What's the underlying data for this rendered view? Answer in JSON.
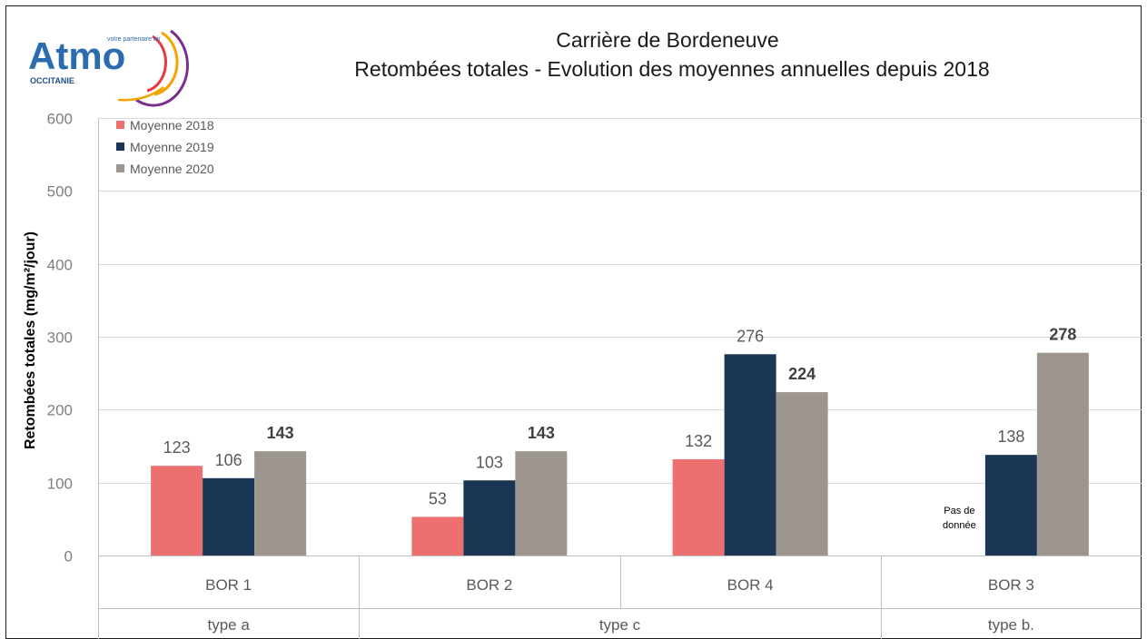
{
  "logo": {
    "name": "Atmo",
    "tagline": "votre partenaire air",
    "region": "OCCITANIE"
  },
  "chart_data": {
    "type": "bar",
    "title": "Carrière de Bordeneuve",
    "subtitle": "Retombées totales -  Evolution des moyennes annuelles depuis 2018",
    "ylabel": "Retombées totales (mg/m²/jour)",
    "xlabel": "",
    "ylim": [
      0,
      600
    ],
    "yticks": [
      0,
      100,
      200,
      300,
      400,
      500,
      600
    ],
    "grid": true,
    "legend_position": "top-left",
    "categories": [
      "BOR 1",
      "BOR 2",
      "BOR 4",
      "BOR 3"
    ],
    "groups": [
      {
        "label": "type a",
        "categories": [
          "BOR 1"
        ]
      },
      {
        "label": "type c",
        "categories": [
          "BOR 2",
          "BOR 4"
        ]
      },
      {
        "label": "type b.",
        "categories": [
          "BOR 3"
        ]
      }
    ],
    "series": [
      {
        "name": "Moyenne 2018",
        "color": "#ec7070",
        "values": [
          123,
          53,
          132,
          null
        ]
      },
      {
        "name": "Moyenne 2019",
        "color": "#1b3655",
        "values": [
          106,
          103,
          276,
          138
        ]
      },
      {
        "name": "Moyenne 2020",
        "color": "#9c968e",
        "values": [
          143,
          143,
          224,
          278
        ]
      }
    ],
    "annotations": [
      {
        "category": "BOR 3",
        "series": "Moyenne 2018",
        "text_lines": [
          "Pas de",
          "donnée"
        ]
      }
    ]
  }
}
